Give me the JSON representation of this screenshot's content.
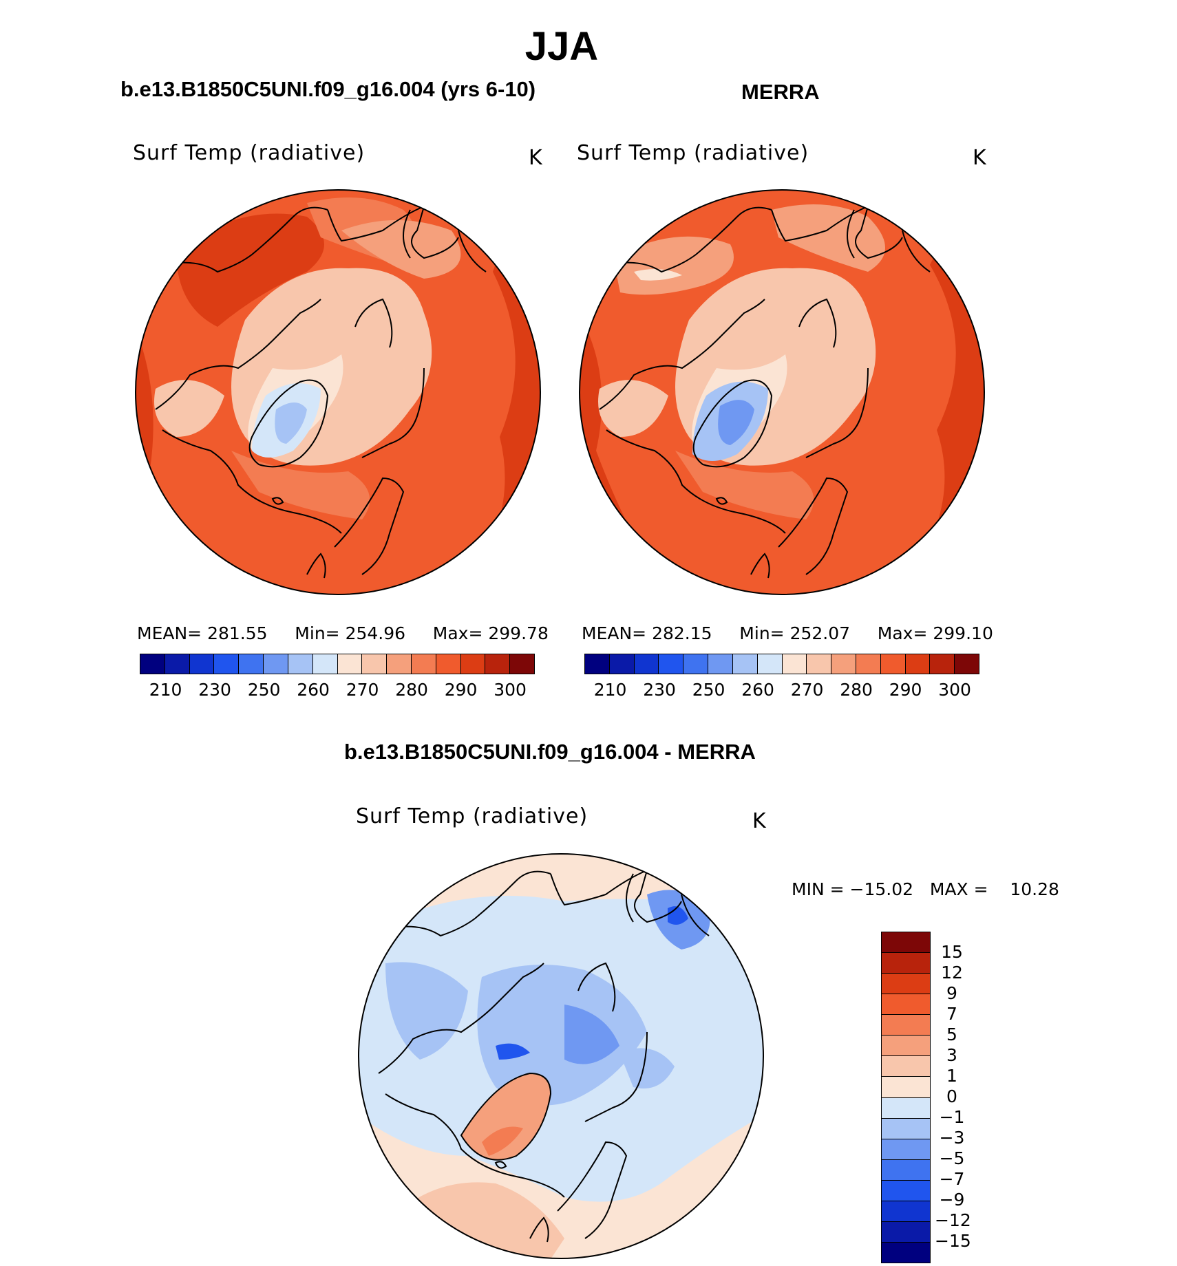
{
  "figure": {
    "title": "JJA",
    "variable": "Surf Temp (radiative)",
    "units": "K"
  },
  "panels": {
    "model": {
      "title": "b.e13.B1850C5UNI.f09_g16.004 (yrs 6-10)",
      "mean_label": "MEAN=",
      "mean": "281.55",
      "min_label": "Min=",
      "min": "254.96",
      "max_label": "Max=",
      "max": "299.78"
    },
    "obs": {
      "title": "MERRA",
      "mean_label": "MEAN=",
      "mean": "282.15",
      "min_label": "Min=",
      "min": "252.07",
      "max_label": "Max=",
      "max": "299.10"
    },
    "diff": {
      "title": "b.e13.B1850C5UNI.f09_g16.004 - MERRA",
      "min_label": "MIN =",
      "min": "−15.02",
      "max_label": "MAX =",
      "max": "10.28"
    }
  },
  "abs_colorbar": {
    "tick_labels": [
      "210",
      "230",
      "250",
      "260",
      "270",
      "280",
      "290",
      "300"
    ],
    "colors": [
      "#00007f",
      "#0a1aa8",
      "#1035d0",
      "#2055ee",
      "#3f73f0",
      "#6f98f2",
      "#a6c3f5",
      "#d4e6f9",
      "#fbe4d4",
      "#f8c6ac",
      "#f5a07c",
      "#f37c52",
      "#f05b2d",
      "#dc3d14",
      "#b8230c",
      "#7d0707"
    ]
  },
  "diff_colorbar": {
    "tick_labels": [
      "15",
      "12",
      "9",
      "7",
      "5",
      "3",
      "1",
      "0",
      "−1",
      "−3",
      "−5",
      "−7",
      "−9",
      "−12",
      "−15"
    ],
    "colors": [
      "#7d0707",
      "#b8230c",
      "#dc3d14",
      "#f05b2d",
      "#f37c52",
      "#f5a07c",
      "#f8c6ac",
      "#fbe4d4",
      "#d4e6f9",
      "#a6c3f5",
      "#6f98f2",
      "#3f73f0",
      "#2055ee",
      "#1035d0",
      "#0a1aa8",
      "#00007f"
    ]
  }
}
